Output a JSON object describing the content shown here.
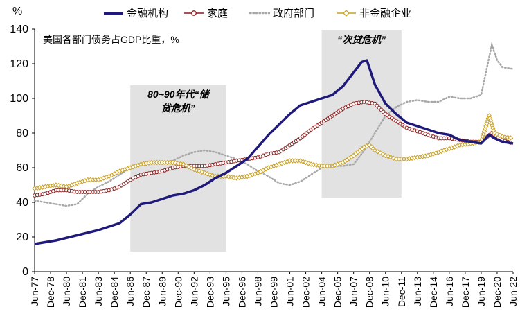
{
  "chart_data": {
    "type": "line",
    "y_unit_label": "%",
    "note": "美国各部门债务占GDP比重，%",
    "ylim": [
      0,
      140
    ],
    "y_ticks": [
      0,
      20,
      40,
      60,
      80,
      100,
      120,
      140
    ],
    "x_tick_labels": [
      "Jun-77",
      "Dec-78",
      "Jun-80",
      "Dec-81",
      "Jun-83",
      "Dec-84",
      "Jun-86",
      "Dec-87",
      "Jun-89",
      "Dec-90",
      "Jun-92",
      "Dec-93",
      "Jun-95",
      "Dec-96",
      "Jun-98",
      "Dec-99",
      "Jun-01",
      "Dec-02",
      "Jun-04",
      "Dec-05",
      "Jun-07",
      "Dec-08",
      "Jun-10",
      "Dec-11",
      "Jun-13",
      "Dec-14",
      "Jun-16",
      "Dec-17",
      "Jun-19",
      "Dec-20",
      "Jun-22"
    ],
    "x_range": [
      "1977-06",
      "2022-06"
    ],
    "grid": false,
    "legend_position": "top",
    "shaded_periods": [
      {
        "label_line1": "80~90年代“储",
        "label_line2": "贷危机”",
        "start": "1986-06",
        "end": "1995-06"
      },
      {
        "label_line1": "“次贷危机”",
        "label_line2": "",
        "start": "2004-06",
        "end": "2011-12"
      }
    ],
    "series": [
      {
        "name": "金融机构",
        "color": "#1F1A7A",
        "marker": "none",
        "points": [
          [
            "1977-06",
            16
          ],
          [
            "1979-06",
            18
          ],
          [
            "1981-06",
            21
          ],
          [
            "1983-06",
            24
          ],
          [
            "1985-06",
            28
          ],
          [
            "1986-06",
            33
          ],
          [
            "1987-06",
            39
          ],
          [
            "1988-06",
            40
          ],
          [
            "1989-06",
            42
          ],
          [
            "1990-06",
            44
          ],
          [
            "1991-06",
            45
          ],
          [
            "1992-06",
            47
          ],
          [
            "1993-06",
            50
          ],
          [
            "1994-06",
            54
          ],
          [
            "1995-06",
            57
          ],
          [
            "1996-06",
            61
          ],
          [
            "1997-06",
            65
          ],
          [
            "1998-06",
            72
          ],
          [
            "1999-06",
            79
          ],
          [
            "2000-06",
            85
          ],
          [
            "2001-06",
            91
          ],
          [
            "2002-06",
            96
          ],
          [
            "2003-06",
            98
          ],
          [
            "2004-06",
            100
          ],
          [
            "2005-06",
            102
          ],
          [
            "2006-06",
            107
          ],
          [
            "2007-06",
            115
          ],
          [
            "2008-03",
            121
          ],
          [
            "2008-09",
            122
          ],
          [
            "2009-06",
            108
          ],
          [
            "2010-06",
            97
          ],
          [
            "2011-06",
            91
          ],
          [
            "2012-06",
            86
          ],
          [
            "2013-06",
            84
          ],
          [
            "2014-06",
            82
          ],
          [
            "2015-06",
            80
          ],
          [
            "2016-06",
            79
          ],
          [
            "2017-06",
            76
          ],
          [
            "2018-06",
            75
          ],
          [
            "2019-06",
            74
          ],
          [
            "2020-03",
            79
          ],
          [
            "2020-09",
            77
          ],
          [
            "2021-06",
            75
          ],
          [
            "2022-06",
            74
          ]
        ]
      },
      {
        "name": "家庭",
        "color": "#8B1A1A",
        "marker": "circle",
        "points": [
          [
            "1977-06",
            44
          ],
          [
            "1978-06",
            45
          ],
          [
            "1979-06",
            47
          ],
          [
            "1980-06",
            47
          ],
          [
            "1981-06",
            46
          ],
          [
            "1982-06",
            46
          ],
          [
            "1983-06",
            46
          ],
          [
            "1984-06",
            47
          ],
          [
            "1985-06",
            49
          ],
          [
            "1986-06",
            53
          ],
          [
            "1987-06",
            56
          ],
          [
            "1988-06",
            57
          ],
          [
            "1989-06",
            58
          ],
          [
            "1990-06",
            60
          ],
          [
            "1991-06",
            61
          ],
          [
            "1992-06",
            61
          ],
          [
            "1993-06",
            61
          ],
          [
            "1994-06",
            62
          ],
          [
            "1995-06",
            63
          ],
          [
            "1996-06",
            64
          ],
          [
            "1997-06",
            65
          ],
          [
            "1998-06",
            66
          ],
          [
            "1999-06",
            68
          ],
          [
            "2000-06",
            69
          ],
          [
            "2001-06",
            73
          ],
          [
            "2002-06",
            77
          ],
          [
            "2003-06",
            82
          ],
          [
            "2004-06",
            86
          ],
          [
            "2005-06",
            90
          ],
          [
            "2006-06",
            94
          ],
          [
            "2007-06",
            97
          ],
          [
            "2008-06",
            98
          ],
          [
            "2009-06",
            97
          ],
          [
            "2010-06",
            91
          ],
          [
            "2011-06",
            87
          ],
          [
            "2012-06",
            83
          ],
          [
            "2013-06",
            81
          ],
          [
            "2014-06",
            79
          ],
          [
            "2015-06",
            77
          ],
          [
            "2016-06",
            77
          ],
          [
            "2017-06",
            76
          ],
          [
            "2018-06",
            75
          ],
          [
            "2019-06",
            75
          ],
          [
            "2020-06",
            80
          ],
          [
            "2021-06",
            76
          ],
          [
            "2022-06",
            74
          ]
        ]
      },
      {
        "name": "政府部门",
        "color": "#A8A8A8",
        "marker": "dotted",
        "points": [
          [
            "1977-06",
            41
          ],
          [
            "1978-06",
            40
          ],
          [
            "1979-06",
            39
          ],
          [
            "1980-06",
            38
          ],
          [
            "1981-06",
            39
          ],
          [
            "1982-06",
            45
          ],
          [
            "1983-06",
            49
          ],
          [
            "1984-06",
            52
          ],
          [
            "1985-06",
            56
          ],
          [
            "1986-06",
            60
          ],
          [
            "1987-06",
            62
          ],
          [
            "1988-06",
            63
          ],
          [
            "1989-06",
            63
          ],
          [
            "1990-06",
            64
          ],
          [
            "1991-06",
            67
          ],
          [
            "1992-06",
            69
          ],
          [
            "1993-06",
            70
          ],
          [
            "1994-06",
            69
          ],
          [
            "1995-06",
            67
          ],
          [
            "1996-06",
            65
          ],
          [
            "1997-06",
            62
          ],
          [
            "1998-06",
            58
          ],
          [
            "1999-06",
            55
          ],
          [
            "2000-06",
            51
          ],
          [
            "2001-06",
            50
          ],
          [
            "2002-06",
            52
          ],
          [
            "2003-06",
            56
          ],
          [
            "2004-06",
            60
          ],
          [
            "2005-06",
            61
          ],
          [
            "2006-06",
            61
          ],
          [
            "2007-06",
            62
          ],
          [
            "2008-06",
            70
          ],
          [
            "2009-06",
            80
          ],
          [
            "2010-06",
            90
          ],
          [
            "2011-06",
            95
          ],
          [
            "2012-06",
            98
          ],
          [
            "2013-06",
            99
          ],
          [
            "2014-06",
            98
          ],
          [
            "2015-06",
            98
          ],
          [
            "2016-06",
            101
          ],
          [
            "2017-06",
            100
          ],
          [
            "2018-06",
            100
          ],
          [
            "2019-06",
            102
          ],
          [
            "2020-06",
            131
          ],
          [
            "2020-12",
            122
          ],
          [
            "2021-06",
            118
          ],
          [
            "2022-06",
            117
          ]
        ]
      },
      {
        "name": "非金融企业",
        "color": "#C9A227",
        "marker": "diamond",
        "points": [
          [
            "1977-06",
            48
          ],
          [
            "1978-06",
            49
          ],
          [
            "1979-06",
            50
          ],
          [
            "1980-06",
            49
          ],
          [
            "1981-06",
            51
          ],
          [
            "1982-06",
            53
          ],
          [
            "1983-06",
            53
          ],
          [
            "1984-06",
            55
          ],
          [
            "1985-06",
            58
          ],
          [
            "1986-06",
            60
          ],
          [
            "1987-06",
            62
          ],
          [
            "1988-06",
            63
          ],
          [
            "1989-06",
            63
          ],
          [
            "1990-06",
            63
          ],
          [
            "1991-06",
            62
          ],
          [
            "1992-06",
            59
          ],
          [
            "1993-06",
            57
          ],
          [
            "1994-06",
            55
          ],
          [
            "1995-06",
            55
          ],
          [
            "1996-06",
            54
          ],
          [
            "1997-06",
            55
          ],
          [
            "1998-06",
            57
          ],
          [
            "1999-06",
            60
          ],
          [
            "2000-06",
            62
          ],
          [
            "2001-06",
            64
          ],
          [
            "2002-06",
            64
          ],
          [
            "2003-06",
            62
          ],
          [
            "2004-06",
            61
          ],
          [
            "2005-06",
            61
          ],
          [
            "2006-06",
            63
          ],
          [
            "2007-06",
            67
          ],
          [
            "2008-06",
            72
          ],
          [
            "2008-12",
            73
          ],
          [
            "2009-06",
            70
          ],
          [
            "2010-06",
            67
          ],
          [
            "2011-06",
            65
          ],
          [
            "2012-06",
            65
          ],
          [
            "2013-06",
            66
          ],
          [
            "2014-06",
            67
          ],
          [
            "2015-06",
            69
          ],
          [
            "2016-06",
            71
          ],
          [
            "2017-06",
            73
          ],
          [
            "2018-06",
            74
          ],
          [
            "2019-06",
            75
          ],
          [
            "2020-03",
            90
          ],
          [
            "2020-09",
            80
          ],
          [
            "2021-06",
            78
          ],
          [
            "2022-06",
            77
          ]
        ]
      }
    ]
  }
}
